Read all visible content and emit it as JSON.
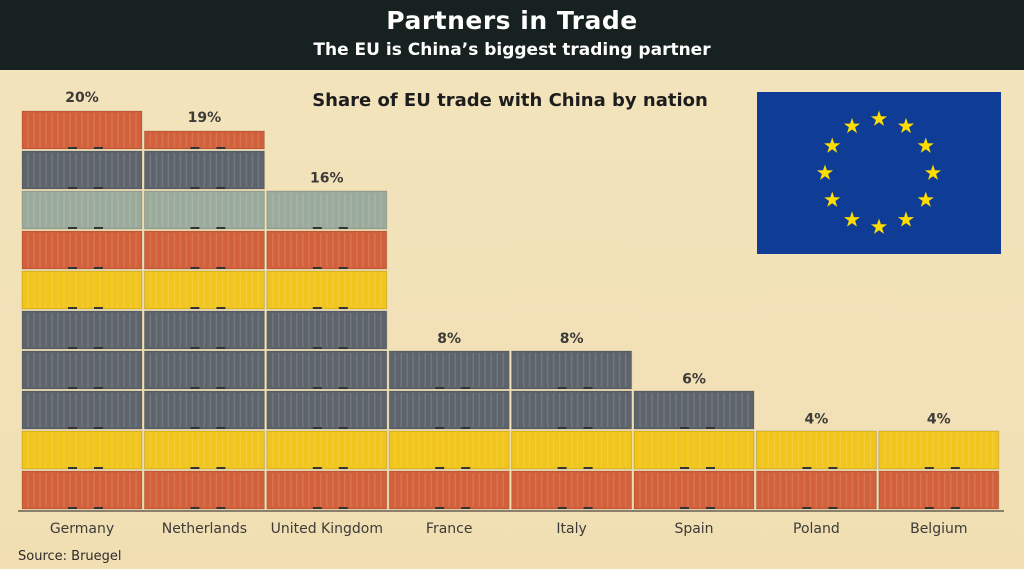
{
  "header": {
    "title": "Partners in Trade",
    "subtitle": "The EU is China’s biggest trading partner"
  },
  "source": "Source: Bruegel",
  "flag": {
    "icon": "eu-flag-icon",
    "stars": 12,
    "blue": "#0f3d96",
    "star_color": "#ffdd00"
  },
  "colors": {
    "orange": "#d2603a",
    "yellow": "#f1c51c",
    "grey": "#5e646c",
    "sage": "#9aab9c"
  },
  "chart_data": {
    "type": "bar",
    "title": "Share of EU trade with China by nation",
    "categories": [
      "Germany",
      "Netherlands",
      "United Kingdom",
      "France",
      "Italy",
      "Spain",
      "Poland",
      "Belgium"
    ],
    "values": [
      20,
      19,
      16,
      8,
      8,
      6,
      4,
      4
    ],
    "data_labels": [
      "20%",
      "19%",
      "16%",
      "8%",
      "8%",
      "6%",
      "4%",
      "4%"
    ],
    "unit": "%",
    "ylim": [
      0,
      20
    ],
    "grid": false,
    "xlabel": "",
    "ylabel": ""
  }
}
